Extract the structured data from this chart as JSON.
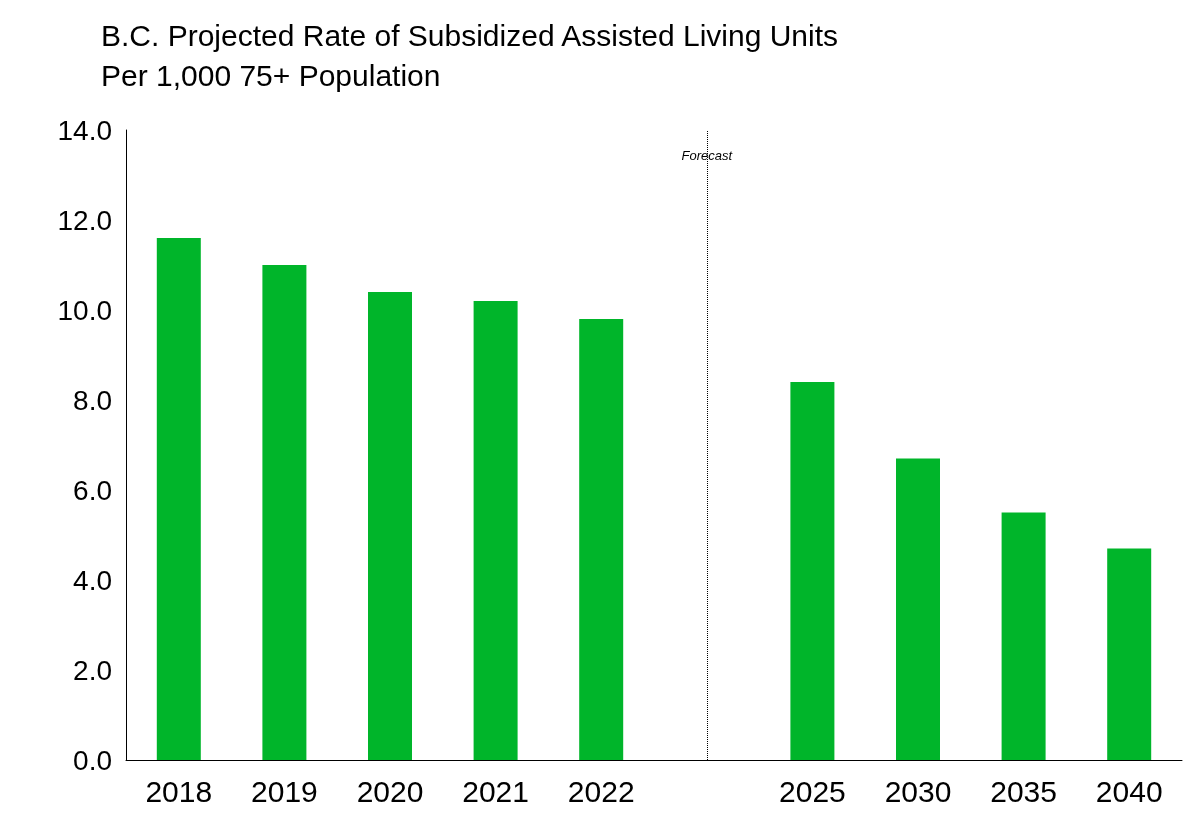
{
  "chart_data": {
    "type": "bar",
    "title": "B.C. Projected Rate of Subsidized Assisted Living Units\nPer 1,000 75+ Population",
    "categories": [
      "2018",
      "2019",
      "2020",
      "2021",
      "2022",
      null,
      "2025",
      "2030",
      "2035",
      "2040"
    ],
    "values": [
      11.6,
      11.0,
      10.4,
      10.2,
      9.8,
      null,
      8.4,
      6.7,
      5.5,
      4.7
    ],
    "color": "#00b52a",
    "ylim": [
      0,
      14
    ],
    "yticks": [
      {
        "value": 0,
        "label": "0.0"
      },
      {
        "value": 2,
        "label": "2.0"
      },
      {
        "value": 4,
        "label": "4.0"
      },
      {
        "value": 6,
        "label": "6.0"
      },
      {
        "value": 8,
        "label": "8.0"
      },
      {
        "value": 10,
        "label": "10.0"
      },
      {
        "value": 12,
        "label": "12.0"
      },
      {
        "value": 14,
        "label": "14.0"
      }
    ],
    "ref_lines": [
      {
        "axis": "x",
        "value": null,
        "label": "Forecast",
        "line_style": "dotted"
      }
    ]
  }
}
